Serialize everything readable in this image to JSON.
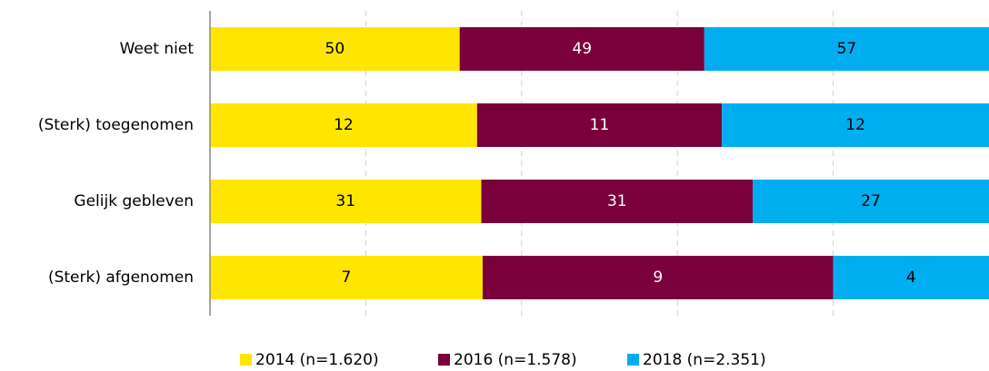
{
  "chart_data": {
    "type": "stacked-bar-100",
    "categories": [
      "Weet niet",
      "(Sterk) toegenomen",
      "Gelijk gebleven",
      "(Sterk) afgenomen"
    ],
    "series": [
      {
        "name": "2014 (n=1.620)",
        "color": "#ffe600",
        "values": [
          50,
          12,
          31,
          7
        ]
      },
      {
        "name": "2016 (n=1.578)",
        "color": "#7a003c",
        "values": [
          49,
          11,
          31,
          9
        ]
      },
      {
        "name": "2018 (n=2.351)",
        "color": "#00aeef",
        "values": [
          57,
          12,
          27,
          4
        ]
      }
    ],
    "xlim": [
      0,
      100
    ],
    "xticks": [
      0,
      20,
      40,
      60,
      80,
      100
    ],
    "grid": true,
    "legend": "bottom"
  }
}
